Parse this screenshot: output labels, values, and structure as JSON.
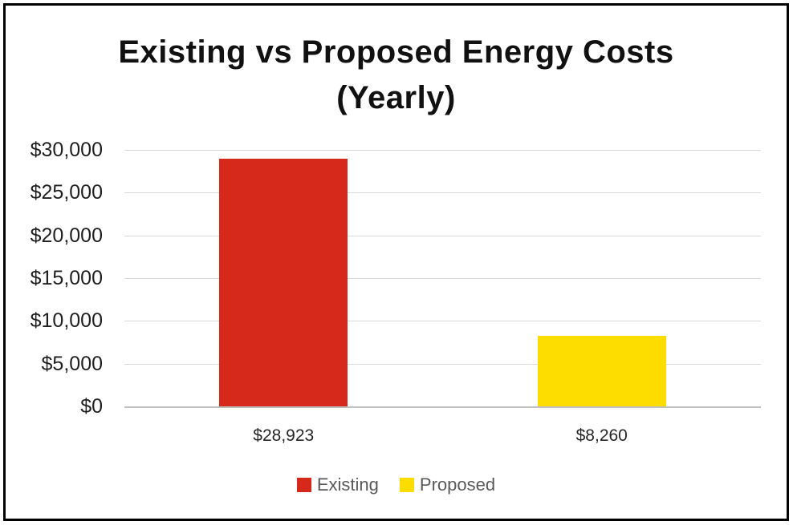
{
  "chart": {
    "title_lines": [
      "Existing vs Proposed Energy Costs",
      "(Yearly)"
    ]
  },
  "chart_data": {
    "type": "bar",
    "title": "Existing vs Proposed Energy Costs (Yearly)",
    "series": [
      {
        "name": "Existing",
        "value": 28923,
        "label": "$28,923",
        "color": "#d7281c"
      },
      {
        "name": "Proposed",
        "value": 8260,
        "label": "$8,260",
        "color": "#fddd00"
      }
    ],
    "xlabel": "",
    "ylabel": "",
    "ylim": [
      0,
      30000
    ],
    "y_tick_step": 5000,
    "y_tick_labels": [
      "$30,000",
      "$25,000",
      "$20,000",
      "$15,000",
      "$10,000",
      "$5,000",
      "$0"
    ],
    "grid": true,
    "legend_position": "bottom",
    "colors": {
      "gridline": "#d9d9d9",
      "baseline": "#bfbfbf",
      "title_text": "#111111",
      "axis_text": "#262626",
      "legend_text": "#595959",
      "border": "#000000"
    }
  }
}
